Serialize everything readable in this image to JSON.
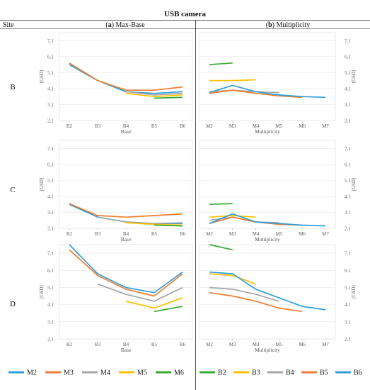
{
  "figure": {
    "title": "USB camera",
    "site_header": "Site",
    "col_a_header": {
      "bold": "a",
      "rest": " Max-Base"
    },
    "col_b_header": {
      "bold": "b",
      "rest": " Multiplicity"
    }
  },
  "legend_a": [
    {
      "label": "M2",
      "color": "#2e9fd9"
    },
    {
      "label": "M3",
      "color": "#ed7d31"
    },
    {
      "label": "M4",
      "color": "#a5a5a5"
    },
    {
      "label": "M5",
      "color": "#ffc000"
    },
    {
      "label": "M6",
      "color": "#3aa835"
    }
  ],
  "legend_b": [
    {
      "label": "B2",
      "color": "#3aa835"
    },
    {
      "label": "B3",
      "color": "#ffc000"
    },
    {
      "label": "B4",
      "color": "#a5a5a5"
    },
    {
      "label": "B5",
      "color": "#ed7d31"
    },
    {
      "label": "B6",
      "color": "#2e9fd9"
    }
  ],
  "chart_data": [
    {
      "type": "line",
      "site": "B",
      "panel": "a",
      "categories": [
        "B2",
        "B3",
        "B4",
        "B5",
        "B6"
      ],
      "xlabel": "Base",
      "ylabel": "[GSD]",
      "yticks": [
        "2.1",
        "3.1",
        "4.1",
        "5.1",
        "6.1",
        "7.1"
      ],
      "ylim": [
        2.1,
        7.6
      ],
      "series": [
        {
          "name": "M2",
          "values": [
            5.6,
            4.6,
            3.9,
            3.8,
            3.9
          ]
        },
        {
          "name": "M3",
          "values": [
            5.7,
            4.6,
            4.0,
            4.0,
            4.2
          ]
        },
        {
          "name": "M4",
          "values": [
            null,
            null,
            3.9,
            3.7,
            3.8
          ]
        },
        {
          "name": "M5",
          "values": [
            null,
            null,
            3.8,
            3.6,
            3.7
          ]
        },
        {
          "name": "M6",
          "values": [
            null,
            null,
            null,
            3.5,
            3.55
          ]
        }
      ]
    },
    {
      "type": "line",
      "site": "B",
      "panel": "b",
      "categories": [
        "M2",
        "M3",
        "M4",
        "M5",
        "M6",
        "M7"
      ],
      "xlabel": "Multiplicity",
      "ylabel": "[GSD]",
      "yticks": [
        "2.1",
        "3.1",
        "4.1",
        "5.1",
        "6.1",
        "7.1"
      ],
      "ylim": [
        2.1,
        7.6
      ],
      "series": [
        {
          "name": "B2",
          "values": [
            5.6,
            5.7,
            null,
            null,
            null,
            null
          ]
        },
        {
          "name": "B3",
          "values": [
            4.6,
            4.6,
            4.65,
            null,
            null,
            null
          ]
        },
        {
          "name": "B4",
          "values": [
            3.9,
            4.0,
            3.9,
            3.85,
            null,
            null
          ]
        },
        {
          "name": "B5",
          "values": [
            3.8,
            4.0,
            3.8,
            3.65,
            3.55,
            null
          ]
        },
        {
          "name": "B6",
          "values": [
            3.85,
            4.3,
            3.9,
            3.7,
            3.6,
            3.55
          ]
        }
      ]
    },
    {
      "type": "line",
      "site": "C",
      "panel": "a",
      "categories": [
        "B2",
        "B3",
        "B4",
        "B5",
        "B6"
      ],
      "xlabel": "Base",
      "ylabel": "[GSD]",
      "yticks": [
        "2.1",
        "3.1",
        "4.1",
        "5.1",
        "6.1",
        "7.1"
      ],
      "ylim": [
        2.1,
        7.6
      ],
      "series": [
        {
          "name": "M2",
          "values": [
            3.6,
            2.8,
            2.5,
            2.4,
            2.4
          ]
        },
        {
          "name": "M3",
          "values": [
            3.65,
            2.9,
            2.8,
            2.9,
            3.0
          ]
        },
        {
          "name": "M4",
          "values": [
            null,
            2.8,
            2.5,
            2.4,
            2.45
          ]
        },
        {
          "name": "M5",
          "values": [
            null,
            null,
            2.45,
            2.35,
            2.3
          ]
        },
        {
          "name": "M6",
          "values": [
            null,
            null,
            null,
            2.3,
            2.25
          ]
        }
      ]
    },
    {
      "type": "line",
      "site": "C",
      "panel": "b",
      "categories": [
        "M2",
        "M3",
        "M4",
        "M5",
        "M6",
        "M7"
      ],
      "xlabel": "Multiplicity",
      "ylabel": "[GSD]",
      "yticks": [
        "2.1",
        "3.1",
        "4.1",
        "5.1",
        "6.1",
        "7.1"
      ],
      "ylim": [
        2.1,
        7.6
      ],
      "series": [
        {
          "name": "B2",
          "values": [
            3.6,
            3.65,
            null,
            null,
            null,
            null
          ]
        },
        {
          "name": "B3",
          "values": [
            2.8,
            2.9,
            2.8,
            null,
            null,
            null
          ]
        },
        {
          "name": "B4",
          "values": [
            2.6,
            2.8,
            2.5,
            2.45,
            null,
            null
          ]
        },
        {
          "name": "B5",
          "values": [
            2.4,
            2.8,
            2.5,
            2.35,
            2.3,
            null
          ]
        },
        {
          "name": "B6",
          "values": [
            2.4,
            3.0,
            2.5,
            2.4,
            2.3,
            2.25
          ]
        }
      ]
    },
    {
      "type": "line",
      "site": "D",
      "panel": "a",
      "categories": [
        "B2",
        "B3",
        "B4",
        "B5",
        "B6"
      ],
      "xlabel": "Base",
      "ylabel": "[GSD]",
      "yticks": [
        "2.1",
        "3.1",
        "4.1",
        "5.1",
        "6.1",
        "7.1"
      ],
      "ylim": [
        2.1,
        7.6
      ],
      "series": [
        {
          "name": "M2",
          "values": [
            7.6,
            5.9,
            5.1,
            4.8,
            6.0
          ]
        },
        {
          "name": "M3",
          "values": [
            7.3,
            5.8,
            5.0,
            4.6,
            5.9
          ]
        },
        {
          "name": "M4",
          "values": [
            null,
            5.3,
            4.7,
            4.3,
            5.1
          ]
        },
        {
          "name": "M5",
          "values": [
            null,
            null,
            4.3,
            3.9,
            4.5
          ]
        },
        {
          "name": "M6",
          "values": [
            null,
            null,
            null,
            3.7,
            4.0
          ]
        }
      ]
    },
    {
      "type": "line",
      "site": "D",
      "panel": "b",
      "categories": [
        "M2",
        "M3",
        "M4",
        "M5",
        "M6",
        "M7"
      ],
      "xlabel": "Multiplicity",
      "ylabel": "[GSD]",
      "yticks": [
        "2.1",
        "3.1",
        "4.1",
        "5.1",
        "6.1",
        "7.1"
      ],
      "ylim": [
        2.1,
        7.6
      ],
      "series": [
        {
          "name": "B2",
          "values": [
            7.6,
            7.3,
            null,
            null,
            null,
            null
          ]
        },
        {
          "name": "B3",
          "values": [
            5.9,
            5.8,
            5.3,
            null,
            null,
            null
          ]
        },
        {
          "name": "B4",
          "values": [
            5.1,
            5.0,
            4.7,
            4.3,
            null,
            null
          ]
        },
        {
          "name": "B5",
          "values": [
            4.8,
            4.6,
            4.3,
            3.9,
            3.7,
            null
          ]
        },
        {
          "name": "B6",
          "values": [
            6.0,
            5.9,
            5.0,
            4.5,
            4.0,
            3.8
          ]
        }
      ]
    }
  ]
}
